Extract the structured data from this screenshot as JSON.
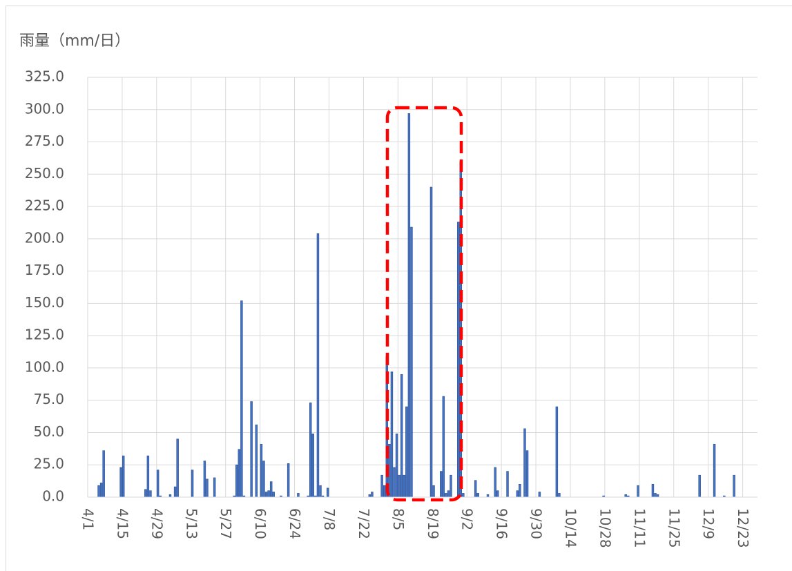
{
  "chart_data": {
    "type": "bar",
    "title": "雨量（mm/日）",
    "color": "#4472c4",
    "grid": true,
    "ylim": [
      0,
      325
    ],
    "yticks": [
      {
        "value": 0,
        "label": "0.0"
      },
      {
        "value": 25,
        "label": "25.0"
      },
      {
        "value": 50,
        "label": "50.0"
      },
      {
        "value": 75,
        "label": "75.0"
      },
      {
        "value": 100,
        "label": "100.0"
      },
      {
        "value": 125,
        "label": "125.0"
      },
      {
        "value": 150,
        "label": "150.0"
      },
      {
        "value": 175,
        "label": "175.0"
      },
      {
        "value": 200,
        "label": "200.0"
      },
      {
        "value": 225,
        "label": "225.0"
      },
      {
        "value": 250,
        "label": "250.0"
      },
      {
        "value": 275,
        "label": "275.0"
      },
      {
        "value": 300,
        "label": "300.0"
      },
      {
        "value": 325,
        "label": "325.0"
      }
    ],
    "categories": [
      "4/1",
      null,
      null,
      null,
      null,
      null,
      null,
      null,
      null,
      null,
      null,
      null,
      null,
      null,
      "4/15",
      null,
      null,
      null,
      null,
      null,
      null,
      null,
      null,
      null,
      null,
      null,
      null,
      null,
      "4/29",
      null,
      null,
      null,
      null,
      null,
      null,
      null,
      null,
      null,
      null,
      null,
      null,
      null,
      "5/13",
      null,
      null,
      null,
      null,
      null,
      null,
      null,
      null,
      null,
      null,
      null,
      null,
      null,
      "5/27",
      null,
      null,
      null,
      null,
      null,
      null,
      null,
      null,
      null,
      null,
      null,
      null,
      null,
      "6/10",
      null,
      null,
      null,
      null,
      null,
      null,
      null,
      null,
      null,
      null,
      null,
      null,
      null,
      "6/24",
      null,
      null,
      null,
      null,
      null,
      null,
      null,
      null,
      null,
      null,
      null,
      null,
      null,
      "7/8",
      null,
      null,
      null,
      null,
      null,
      null,
      null,
      null,
      null,
      null,
      null,
      null,
      null,
      "7/22",
      null,
      null,
      null,
      null,
      null,
      null,
      null,
      null,
      null,
      null,
      null,
      null,
      null,
      "8/5",
      null,
      null,
      null,
      null,
      null,
      null,
      null,
      null,
      null,
      null,
      null,
      null,
      null,
      "8/19",
      null,
      null,
      null,
      null,
      null,
      null,
      null,
      null,
      null,
      null,
      null,
      null,
      null,
      "9/2",
      null,
      null,
      null,
      null,
      null,
      null,
      null,
      null,
      null,
      null,
      null,
      null,
      null,
      "9/16",
      null,
      null,
      null,
      null,
      null,
      null,
      null,
      null,
      null,
      null,
      null,
      null,
      null,
      "9/30",
      null,
      null,
      null,
      null,
      null,
      null,
      null,
      null,
      null,
      null,
      null,
      null,
      null,
      "10/14",
      null,
      null,
      null,
      null,
      null,
      null,
      null,
      null,
      null,
      null,
      null,
      null,
      null,
      "10/28",
      null,
      null,
      null,
      null,
      null,
      null,
      null,
      null,
      null,
      null,
      null,
      null,
      null,
      "11/11",
      null,
      null,
      null,
      null,
      null,
      null,
      null,
      null,
      null,
      null,
      null,
      null,
      null,
      "11/25",
      null,
      null,
      null,
      null,
      null,
      null,
      null,
      null,
      null,
      null,
      null,
      null,
      null,
      "12/9",
      null,
      null,
      null,
      null,
      null,
      null,
      null,
      null,
      null,
      null,
      null,
      null,
      null,
      "12/23",
      null,
      null,
      null,
      null,
      null
    ],
    "values": [
      0,
      0,
      0,
      0,
      9,
      11,
      36,
      0,
      0,
      0,
      0,
      0,
      0,
      23,
      32,
      0,
      0,
      0,
      0,
      0,
      0,
      0,
      0,
      6,
      32,
      5,
      0,
      0,
      21,
      1,
      0,
      0,
      0,
      2,
      0,
      8,
      45,
      0,
      0,
      0,
      0,
      0,
      21,
      0,
      0,
      0,
      0,
      28,
      14,
      0,
      0,
      15,
      0,
      0,
      0,
      0,
      0,
      0,
      0,
      1,
      25,
      37,
      152,
      1,
      0,
      0,
      74,
      0,
      56,
      0,
      41,
      28,
      4,
      5,
      12,
      4,
      0,
      0,
      1,
      0,
      0,
      26,
      0,
      0,
      0,
      3,
      0,
      0,
      0,
      1,
      73,
      49,
      1,
      204,
      9,
      1,
      0,
      7,
      0,
      0,
      0,
      0,
      0,
      0,
      0,
      0,
      0,
      0,
      0,
      0,
      0,
      0,
      0,
      0,
      2,
      4,
      0,
      0,
      0,
      17,
      9,
      109,
      41,
      97,
      23,
      49,
      17,
      95,
      17,
      70,
      297,
      209,
      0,
      0,
      0,
      0,
      0,
      0,
      0,
      240,
      9,
      0,
      0,
      20,
      78,
      3,
      5,
      17,
      0,
      0,
      213,
      260,
      3,
      0,
      0,
      0,
      0,
      13,
      3,
      0,
      0,
      0,
      2,
      0,
      0,
      23,
      5,
      0,
      0,
      0,
      20,
      0,
      0,
      0,
      5,
      10,
      0,
      53,
      36,
      0,
      0,
      0,
      0,
      4,
      0,
      0,
      0,
      0,
      0,
      0,
      70,
      3,
      0,
      0,
      0,
      0,
      0,
      0,
      0,
      0,
      0,
      0,
      0,
      0,
      0,
      0,
      0,
      0,
      0,
      1,
      0,
      0,
      0,
      0,
      0,
      0,
      0,
      0,
      2,
      1,
      0,
      0,
      0,
      9,
      0,
      0,
      0,
      0,
      0,
      10,
      3,
      2,
      0,
      0,
      0,
      0,
      0,
      0,
      0,
      0,
      0,
      0,
      0,
      0,
      0,
      0,
      0,
      0,
      17,
      0,
      0,
      0,
      0,
      0,
      41,
      0,
      0,
      0,
      1,
      0,
      0,
      0,
      17,
      0,
      0,
      0,
      0,
      0,
      0,
      0,
      0,
      0
    ]
  }
}
